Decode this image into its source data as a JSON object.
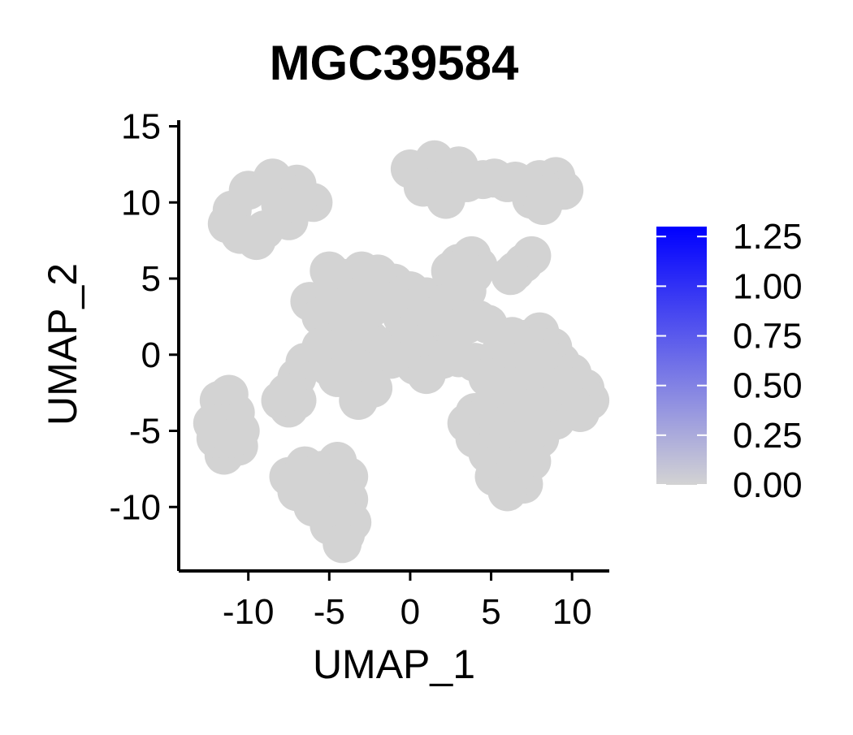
{
  "chart_data": {
    "type": "scatter",
    "title": "MGC39584",
    "xlabel": "UMAP_1",
    "ylabel": "UMAP_2",
    "xlim": [
      -14.3,
      12.3
    ],
    "ylim": [
      -14.2,
      15.4
    ],
    "x_ticks": [
      -10,
      -5,
      0,
      5,
      10
    ],
    "x_tick_labels": [
      "-10",
      "-5",
      "0",
      "5",
      "10"
    ],
    "y_ticks": [
      15,
      10,
      5,
      0,
      -5,
      -10
    ],
    "y_tick_labels": [
      "15",
      "10",
      "5",
      "0",
      "-5",
      "-10"
    ],
    "grid": false,
    "point_color": "#d3d3d3",
    "colorbar": {
      "min": 0,
      "max": 1.3,
      "low_color": "#d3d3d3",
      "high_color": "#0000ff",
      "ticks": [
        0,
        0.25,
        0.5,
        0.75,
        1.0,
        1.25
      ],
      "tick_labels": [
        "0.00",
        "0.25",
        "0.50",
        "0.75",
        "1.00",
        "1.25"
      ],
      "placement": "right"
    },
    "clusters": [
      {
        "name": "c1",
        "points": [
          [
            -11.0,
            9.5
          ],
          [
            -10.0,
            10.8
          ],
          [
            -8.5,
            11.6
          ],
          [
            -7.0,
            11.2
          ],
          [
            -6.0,
            10.0
          ],
          [
            -7.5,
            8.8
          ],
          [
            -9.0,
            8.2
          ],
          [
            -10.5,
            7.9
          ],
          [
            -9.5,
            7.5
          ],
          [
            -11.3,
            8.6
          ],
          [
            -8.0,
            9.8
          ],
          [
            -6.8,
            10.5
          ]
        ]
      },
      {
        "name": "c2",
        "points": [
          [
            0.0,
            12.2
          ],
          [
            1.5,
            12.8
          ],
          [
            3.0,
            12.4
          ],
          [
            3.5,
            11.3
          ],
          [
            2.0,
            10.8
          ],
          [
            0.8,
            11.0
          ],
          [
            2.2,
            10.2
          ],
          [
            4.5,
            11.5
          ],
          [
            6.0,
            11.3
          ],
          [
            7.0,
            11.1
          ],
          [
            8.0,
            11.5
          ],
          [
            9.0,
            11.7
          ],
          [
            9.5,
            10.8
          ],
          [
            8.5,
            10.5
          ],
          [
            7.5,
            10.2
          ],
          [
            8.2,
            9.8
          ],
          [
            6.5,
            11.4
          ],
          [
            5.2,
            11.6
          ]
        ]
      },
      {
        "name": "c3",
        "points": [
          [
            3.0,
            6.0
          ],
          [
            3.8,
            6.5
          ],
          [
            4.2,
            5.8
          ],
          [
            3.2,
            5.0
          ],
          [
            2.5,
            5.5
          ],
          [
            3.5,
            4.2
          ],
          [
            3.0,
            3.3
          ],
          [
            3.9,
            5.3
          ]
        ]
      },
      {
        "name": "c4",
        "points": [
          [
            6.5,
            5.5
          ],
          [
            7.0,
            6.0
          ],
          [
            7.5,
            6.5
          ],
          [
            6.2,
            5.2
          ]
        ]
      },
      {
        "name": "c5",
        "points": [
          [
            -6.2,
            3.5
          ],
          [
            -5.0,
            4.0
          ],
          [
            -4.0,
            5.0
          ],
          [
            -3.0,
            5.5
          ],
          [
            -2.0,
            5.3
          ],
          [
            -1.0,
            4.7
          ],
          [
            0.0,
            4.2
          ],
          [
            1.0,
            3.8
          ],
          [
            2.0,
            3.3
          ],
          [
            2.8,
            2.6
          ],
          [
            -5.5,
            2.5
          ],
          [
            -4.5,
            2.0
          ],
          [
            -3.5,
            1.5
          ],
          [
            -2.5,
            1.0
          ],
          [
            -1.5,
            0.5
          ],
          [
            -0.5,
            0.2
          ],
          [
            0.5,
            0.3
          ],
          [
            1.5,
            0.8
          ],
          [
            2.5,
            1.2
          ],
          [
            3.5,
            2.0
          ],
          [
            -4.5,
            3.2
          ],
          [
            -3.5,
            3.5
          ],
          [
            -2.5,
            3.0
          ],
          [
            -1.5,
            3.5
          ],
          [
            -0.5,
            2.5
          ],
          [
            0.5,
            2.0
          ],
          [
            1.5,
            2.5
          ],
          [
            -5.5,
            0.5
          ],
          [
            -6.5,
            -0.5
          ],
          [
            -7.0,
            -1.5
          ],
          [
            -7.3,
            -2.5
          ],
          [
            -3.0,
            -1.0
          ],
          [
            -2.5,
            -2.0
          ],
          [
            -5.0,
            -0.8
          ],
          [
            -4.0,
            -0.3
          ],
          [
            2.0,
            -0.3
          ],
          [
            3.0,
            -0.2
          ],
          [
            4.0,
            -0.5
          ],
          [
            5.0,
            -0.5
          ],
          [
            5.5,
            -1.0
          ],
          [
            4.2,
            2.3
          ],
          [
            4.8,
            2.0
          ],
          [
            -5.0,
            5.5
          ],
          [
            -2.5,
            4.5
          ],
          [
            0.3,
            -0.7
          ],
          [
            -1.2,
            -0.3
          ]
        ]
      },
      {
        "name": "c6",
        "points": [
          [
            -8.0,
            -3.0
          ],
          [
            -7.5,
            -3.5
          ],
          [
            -7.0,
            -3.0
          ],
          [
            -7.6,
            -2.5
          ]
        ]
      },
      {
        "name": "c7",
        "points": [
          [
            -11.8,
            -3.0
          ],
          [
            -11.2,
            -2.6
          ],
          [
            -10.8,
            -3.8
          ],
          [
            -10.5,
            -5.0
          ],
          [
            -10.6,
            -6.0
          ],
          [
            -11.5,
            -6.6
          ],
          [
            -12.0,
            -5.5
          ],
          [
            -12.2,
            -4.5
          ],
          [
            -11.3,
            -4.5
          ],
          [
            -11.0,
            -5.5
          ]
        ]
      },
      {
        "name": "c8",
        "points": [
          [
            -7.5,
            -8.0
          ],
          [
            -6.5,
            -7.3
          ],
          [
            -5.5,
            -7.6
          ],
          [
            -4.5,
            -7.0
          ],
          [
            -3.8,
            -8.0
          ],
          [
            -3.8,
            -9.5
          ],
          [
            -3.6,
            -11.0
          ],
          [
            -4.0,
            -11.8
          ],
          [
            -5.0,
            -11.2
          ],
          [
            -6.0,
            -10.0
          ],
          [
            -7.0,
            -9.0
          ],
          [
            -5.0,
            -9.5
          ],
          [
            -4.5,
            -10.5
          ],
          [
            -6.0,
            -8.5
          ],
          [
            -4.2,
            -12.4
          ]
        ]
      },
      {
        "name": "c9",
        "points": [
          [
            6.0,
            0.5
          ],
          [
            7.0,
            1.0
          ],
          [
            8.0,
            1.5
          ],
          [
            8.8,
            0.5
          ],
          [
            9.3,
            -0.5
          ],
          [
            10.0,
            -1.2
          ],
          [
            10.8,
            -2.2
          ],
          [
            11.1,
            -3.0
          ],
          [
            10.5,
            -3.8
          ],
          [
            9.0,
            -4.3
          ],
          [
            8.0,
            -5.5
          ],
          [
            7.5,
            -7.0
          ],
          [
            7.0,
            -8.5
          ],
          [
            6.0,
            -9.0
          ],
          [
            5.2,
            -8.0
          ],
          [
            4.8,
            -6.5
          ],
          [
            4.0,
            -5.5
          ],
          [
            3.5,
            -4.5
          ],
          [
            4.0,
            -3.8
          ],
          [
            5.0,
            -3.3
          ],
          [
            6.0,
            -2.5
          ],
          [
            5.8,
            -1.5
          ],
          [
            6.5,
            -0.5
          ],
          [
            7.5,
            0.0
          ],
          [
            8.0,
            -1.0
          ],
          [
            8.5,
            -2.5
          ],
          [
            7.0,
            -2.0
          ],
          [
            6.5,
            -4.0
          ],
          [
            7.5,
            -3.5
          ],
          [
            6.0,
            -6.0
          ],
          [
            6.5,
            -7.5
          ],
          [
            5.5,
            -5.0
          ],
          [
            9.5,
            -2.0
          ],
          [
            7.5,
            -5.0
          ],
          [
            6.3,
            1.2
          ],
          [
            5.5,
            0.0
          ]
        ]
      },
      {
        "name": "c10",
        "points": [
          [
            -2.3,
            -2.2
          ],
          [
            -3.2,
            -3.0
          ],
          [
            4.8,
            -1.5
          ],
          [
            5.3,
            -2.0
          ],
          [
            -4.5,
            -1.5
          ],
          [
            1.0,
            -1.3
          ]
        ]
      }
    ]
  }
}
